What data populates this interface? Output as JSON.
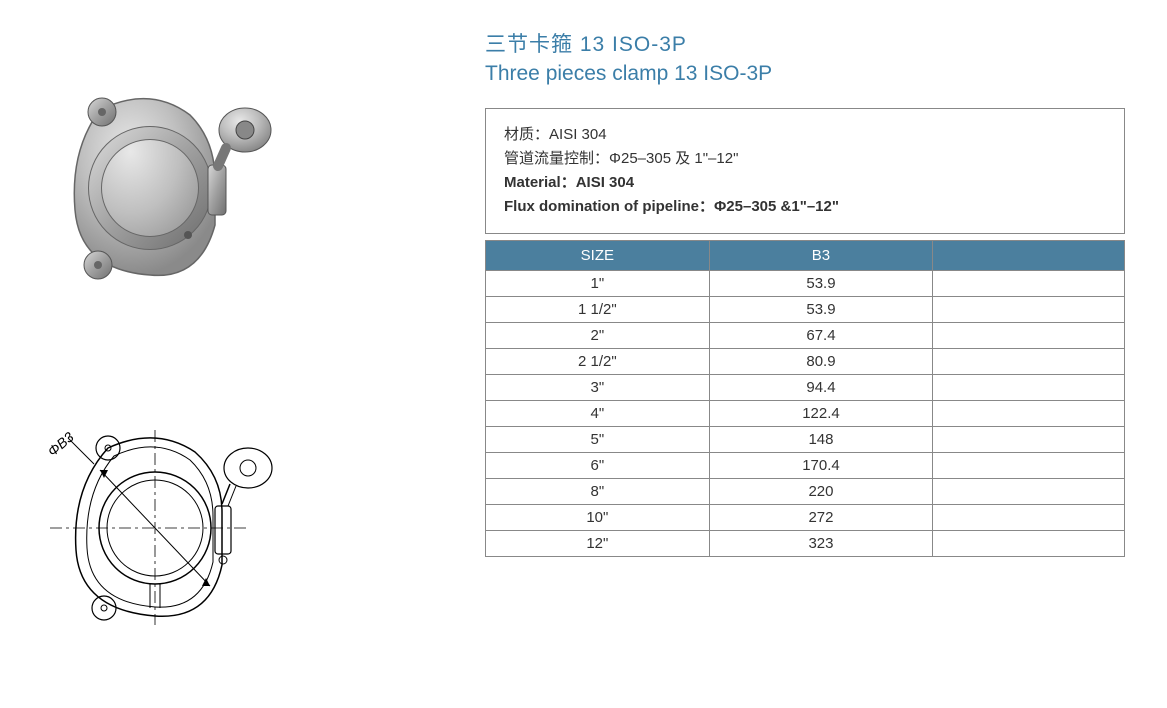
{
  "title_cn": "三节卡箍 13 ISO-3P",
  "title_en": "Three pieces clamp 13 ISO-3P",
  "spec": {
    "material_cn_label": "材质：",
    "material_cn_value": "AISI 304",
    "flux_cn_label": "管道流量控制：",
    "flux_cn_value": "Φ25–305 及 1\"–12\"",
    "material_en_label": "Material：",
    "material_en_value": "AISI 304",
    "flux_en_label": "Flux domination of pipeline：",
    "flux_en_value": "Φ25–305 &1\"–12\""
  },
  "diagram": {
    "dim_label": "ΦB3"
  },
  "table": {
    "columns": [
      "SIZE",
      "B3",
      ""
    ],
    "header_bg": "#4b7f9e",
    "header_color": "#ffffff",
    "border_color": "#888888",
    "rows": [
      [
        "1\"",
        "53.9",
        ""
      ],
      [
        "1 1/2\"",
        "53.9",
        ""
      ],
      [
        "2\"",
        "67.4",
        ""
      ],
      [
        "2 1/2\"",
        "80.9",
        ""
      ],
      [
        "3\"",
        "94.4",
        ""
      ],
      [
        "4\"",
        "122.4",
        ""
      ],
      [
        "5\"",
        "148",
        ""
      ],
      [
        "6\"",
        "170.4",
        ""
      ],
      [
        "8\"",
        "220",
        ""
      ],
      [
        "10\"",
        "272",
        ""
      ],
      [
        "12\"",
        "323",
        ""
      ]
    ]
  },
  "colors": {
    "title": "#3b7ea8",
    "text": "#333333",
    "background": "#ffffff"
  }
}
